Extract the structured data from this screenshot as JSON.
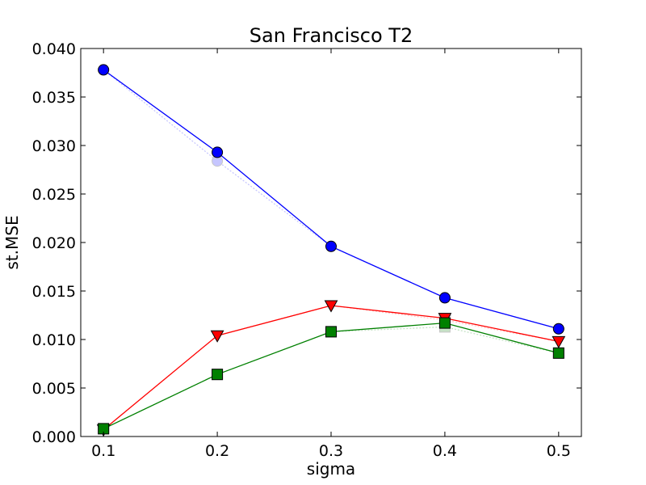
{
  "chart_data": {
    "type": "line",
    "title": "San Francisco T2",
    "xlabel": "sigma",
    "ylabel": "st.MSE",
    "xlim": [
      0.08,
      0.52
    ],
    "ylim": [
      0.0,
      0.04
    ],
    "x_ticks": [
      "0.1",
      "0.2",
      "0.3",
      "0.4",
      "0.5"
    ],
    "x_tick_values": [
      0.1,
      0.2,
      0.3,
      0.4,
      0.5
    ],
    "y_ticks": [
      "0.000",
      "0.005",
      "0.010",
      "0.015",
      "0.020",
      "0.025",
      "0.030",
      "0.035",
      "0.040"
    ],
    "y_tick_values": [
      0.0,
      0.005,
      0.01,
      0.015,
      0.02,
      0.025,
      0.03,
      0.035,
      0.04
    ],
    "grid": false,
    "x": [
      0.1,
      0.2,
      0.3,
      0.4,
      0.5
    ],
    "series": [
      {
        "color": "#0000ff",
        "marker": "circle",
        "values": [
          0.0378,
          0.0293,
          0.0196,
          0.0143,
          0.0111
        ],
        "faded": false
      },
      {
        "color": "#0000ff",
        "marker": "circle",
        "values": [
          0.0378,
          0.0284,
          0.0196,
          0.0143,
          0.0111
        ],
        "faded": true
      },
      {
        "color": "#ff0000",
        "marker": "triangle-down",
        "values": [
          0.0007,
          0.0104,
          0.0135,
          0.0122,
          0.0098
        ],
        "faded": false
      },
      {
        "color": "#ff0000",
        "marker": "triangle-down",
        "values": [
          0.0007,
          0.0104,
          0.0135,
          0.012,
          0.0098
        ],
        "faded": true
      },
      {
        "color": "#008000",
        "marker": "square",
        "values": [
          0.0008,
          0.0064,
          0.0108,
          0.0117,
          0.0086
        ],
        "faded": false
      },
      {
        "color": "#008000",
        "marker": "square",
        "values": [
          0.0008,
          0.0064,
          0.0108,
          0.0113,
          0.0086
        ],
        "faded": true
      }
    ]
  }
}
